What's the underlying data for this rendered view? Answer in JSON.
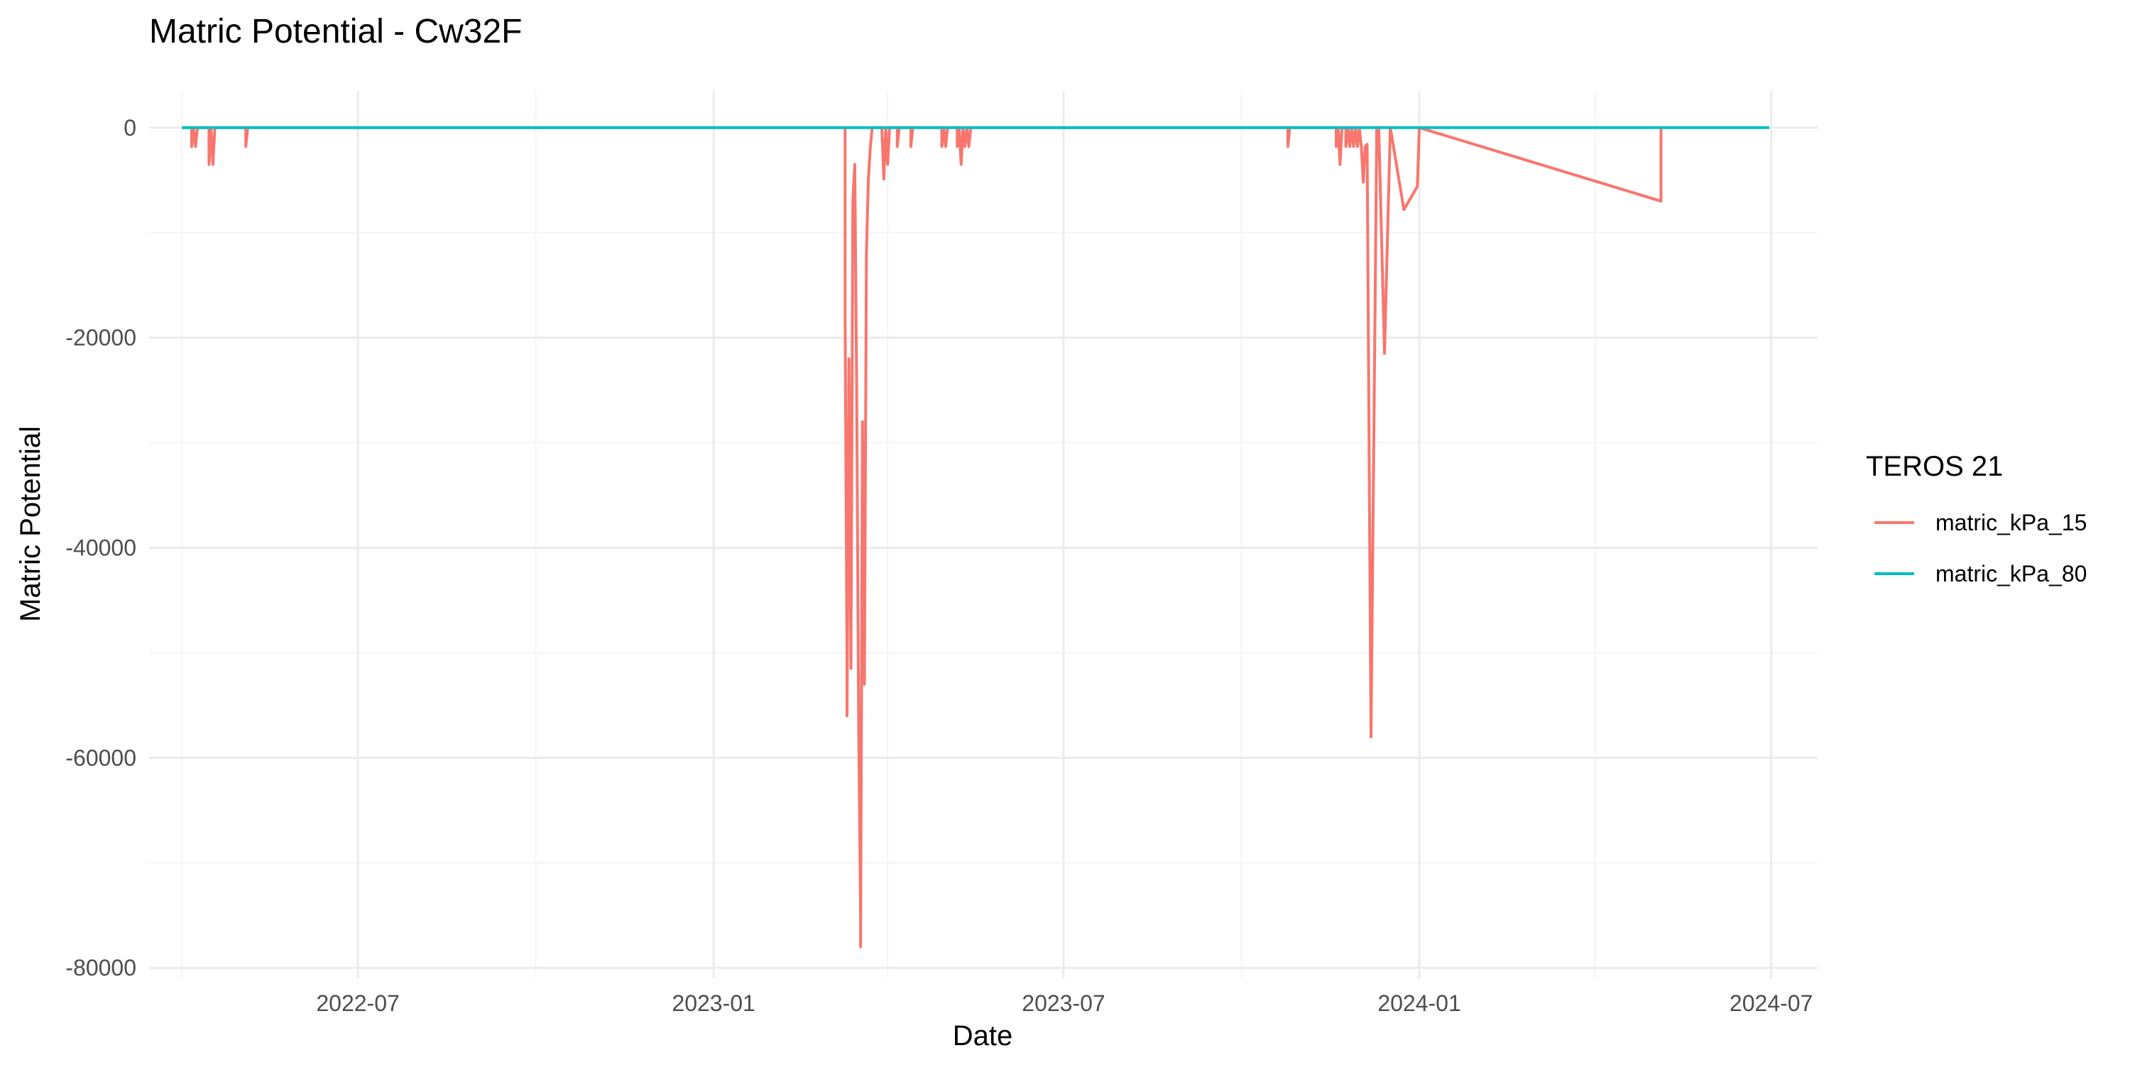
{
  "chart_data": {
    "type": "line",
    "title": "Matric Potential - Cw32F",
    "xlabel": "Date",
    "ylabel": "Matric Potential",
    "x_type": "date",
    "xlim": [
      "2022-03-15",
      "2024-07-25"
    ],
    "ylim": [
      -81000,
      3500
    ],
    "x_ticks": [
      "2022-07-01",
      "2023-01-01",
      "2023-07-01",
      "2024-01-01",
      "2024-07-01"
    ],
    "x_tick_labels": [
      "2022-07",
      "2023-01",
      "2023-07",
      "2024-01",
      "2024-07"
    ],
    "x_minor_ticks": [
      "2022-04-01",
      "2022-10-01",
      "2023-04-01",
      "2023-10-01",
      "2024-04-01"
    ],
    "y_ticks": [
      0,
      -20000,
      -40000,
      -60000,
      -80000
    ],
    "y_tick_labels": [
      "0",
      "-20000",
      "-40000",
      "-60000",
      "-80000"
    ],
    "y_minor_ticks": [
      -10000,
      -30000,
      -50000,
      -70000
    ],
    "grid": true,
    "legend": {
      "title": "TEROS 21",
      "position": "right"
    },
    "series": [
      {
        "name": "matric_kPa_15",
        "color": "#F8766D",
        "points": [
          [
            "2022-04-01",
            0
          ],
          [
            "2022-04-06",
            0
          ],
          [
            "2022-04-06",
            -1800
          ],
          [
            "2022-04-07",
            0
          ],
          [
            "2022-04-08",
            -1800
          ],
          [
            "2022-04-09",
            0
          ],
          [
            "2022-04-15",
            0
          ],
          [
            "2022-04-15",
            -3500
          ],
          [
            "2022-04-16",
            0
          ],
          [
            "2022-04-17",
            -3500
          ],
          [
            "2022-04-18",
            0
          ],
          [
            "2022-05-04",
            0
          ],
          [
            "2022-05-04",
            -1800
          ],
          [
            "2022-05-05",
            0
          ],
          [
            "2023-03-10",
            0
          ],
          [
            "2023-03-10",
            -18000
          ],
          [
            "2023-03-11",
            -51000
          ],
          [
            "2023-03-11",
            -56000
          ],
          [
            "2023-03-12",
            -22000
          ],
          [
            "2023-03-13",
            -51500
          ],
          [
            "2023-03-14",
            -7000
          ],
          [
            "2023-03-15",
            -3500
          ],
          [
            "2023-03-16",
            -25000
          ],
          [
            "2023-03-17",
            -57000
          ],
          [
            "2023-03-18",
            -75000
          ],
          [
            "2023-03-18",
            -78000
          ],
          [
            "2023-03-19",
            -28000
          ],
          [
            "2023-03-20",
            -53000
          ],
          [
            "2023-03-21",
            -12000
          ],
          [
            "2023-03-22",
            -5000
          ],
          [
            "2023-03-23",
            -2000
          ],
          [
            "2023-03-24",
            0
          ],
          [
            "2023-03-29",
            0
          ],
          [
            "2023-03-30",
            -4900
          ],
          [
            "2023-03-31",
            0
          ],
          [
            "2023-04-01",
            -3500
          ],
          [
            "2023-04-02",
            0
          ],
          [
            "2023-04-06",
            0
          ],
          [
            "2023-04-06",
            -1800
          ],
          [
            "2023-04-07",
            0
          ],
          [
            "2023-04-13",
            0
          ],
          [
            "2023-04-13",
            -1800
          ],
          [
            "2023-04-14",
            0
          ],
          [
            "2023-04-29",
            0
          ],
          [
            "2023-04-29",
            -1800
          ],
          [
            "2023-04-30",
            0
          ],
          [
            "2023-05-01",
            -1800
          ],
          [
            "2023-05-02",
            0
          ],
          [
            "2023-05-07",
            0
          ],
          [
            "2023-05-07",
            -1800
          ],
          [
            "2023-05-08",
            0
          ],
          [
            "2023-05-09",
            -3500
          ],
          [
            "2023-05-10",
            0
          ],
          [
            "2023-05-11",
            -1800
          ],
          [
            "2023-05-12",
            0
          ],
          [
            "2023-05-13",
            -1800
          ],
          [
            "2023-05-14",
            0
          ],
          [
            "2023-10-25",
            0
          ],
          [
            "2023-10-25",
            -1800
          ],
          [
            "2023-10-26",
            0
          ],
          [
            "2023-11-19",
            0
          ],
          [
            "2023-11-19",
            -1800
          ],
          [
            "2023-11-20",
            0
          ],
          [
            "2023-11-21",
            -3500
          ],
          [
            "2023-11-22",
            0
          ],
          [
            "2023-11-24",
            0
          ],
          [
            "2023-11-24",
            -1800
          ],
          [
            "2023-11-25",
            0
          ],
          [
            "2023-11-26",
            -1800
          ],
          [
            "2023-11-27",
            0
          ],
          [
            "2023-11-28",
            -1800
          ],
          [
            "2023-11-29",
            0
          ],
          [
            "2023-11-30",
            -1800
          ],
          [
            "2023-12-01",
            0
          ],
          [
            "2023-12-02",
            -1800
          ],
          [
            "2023-12-03",
            -5200
          ],
          [
            "2023-12-04",
            -1800
          ],
          [
            "2023-12-05",
            -1600
          ],
          [
            "2023-12-07",
            -58000
          ],
          [
            "2023-12-10",
            0
          ],
          [
            "2023-12-11",
            0
          ],
          [
            "2023-12-14",
            -21500
          ],
          [
            "2023-12-17",
            0
          ],
          [
            "2023-12-24",
            -7800
          ],
          [
            "2023-12-31",
            -5600
          ],
          [
            "2024-01-01",
            0
          ],
          [
            "2024-05-05",
            -7000
          ],
          [
            "2024-05-05",
            0
          ]
        ]
      },
      {
        "name": "matric_kPa_80",
        "color": "#00BFC4",
        "points": [
          [
            "2022-04-01",
            0
          ],
          [
            "2024-06-30",
            0
          ]
        ]
      }
    ]
  }
}
